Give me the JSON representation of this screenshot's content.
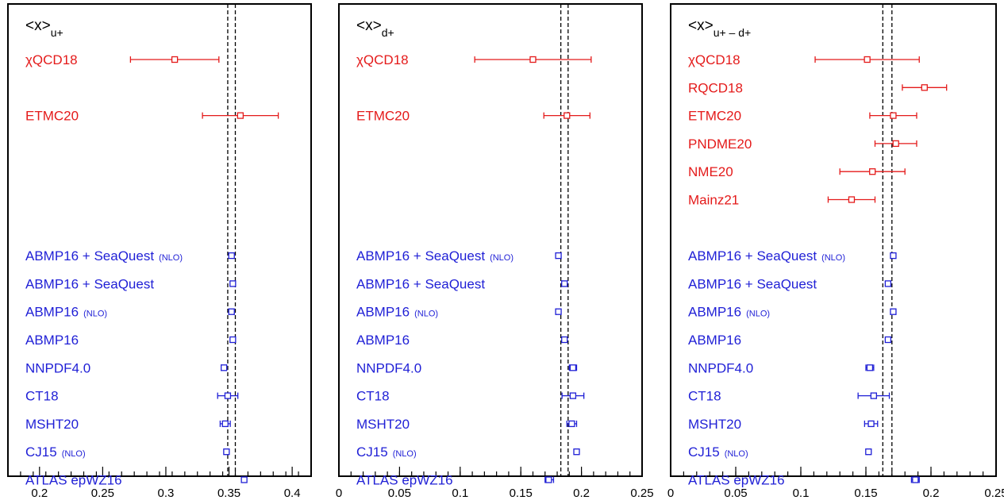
{
  "colors": {
    "lattice": "#e41a1a",
    "pheno": "#1f1fd6",
    "axis": "#000000"
  },
  "chart_data": [
    {
      "type": "scatter",
      "title": "<x>",
      "title_sub": "u+",
      "xlim": [
        0.175,
        0.415
      ],
      "xticks": [
        "0.2",
        "0.25",
        "0.3",
        "0.35",
        "0.4"
      ],
      "band": [
        0.349,
        0.355
      ],
      "points": [
        {
          "label": "χQCD18",
          "group": "lattice",
          "row": 1,
          "x": 0.307,
          "lo": 0.272,
          "hi": 0.342
        },
        {
          "label": "ETMC20",
          "group": "lattice",
          "row": 3,
          "x": 0.359,
          "lo": 0.329,
          "hi": 0.389
        },
        {
          "label": "ABMP16 + SeaQuest",
          "nlo": "(NLO)",
          "group": "pheno",
          "row": 8,
          "x": 0.352,
          "lo": 0.35,
          "hi": 0.354
        },
        {
          "label": "ABMP16 + SeaQuest",
          "group": "pheno",
          "row": 9,
          "x": 0.353,
          "lo": 0.351,
          "hi": 0.355
        },
        {
          "label": "ABMP16",
          "nlo": "(NLO)",
          "group": "pheno",
          "row": 10,
          "x": 0.352,
          "lo": 0.35,
          "hi": 0.354
        },
        {
          "label": "ABMP16",
          "group": "pheno",
          "row": 11,
          "x": 0.353,
          "lo": 0.351,
          "hi": 0.355
        },
        {
          "label": "NNPDF4.0",
          "group": "pheno",
          "row": 12,
          "x": 0.346,
          "lo": 0.344,
          "hi": 0.348
        },
        {
          "label": "CT18",
          "group": "pheno",
          "row": 13,
          "x": 0.349,
          "lo": 0.341,
          "hi": 0.357
        },
        {
          "label": "MSHT20",
          "group": "pheno",
          "row": 14,
          "x": 0.347,
          "lo": 0.343,
          "hi": 0.351
        },
        {
          "label": "CJ15",
          "nlo": "(NLO)",
          "group": "pheno",
          "row": 15,
          "x": 0.348,
          "lo": 0.347,
          "hi": 0.349
        },
        {
          "label": "ATLAS epWZ16",
          "group": "pheno",
          "row": 16,
          "x": 0.362,
          "lo": 0.36,
          "hi": 0.364
        }
      ]
    },
    {
      "type": "scatter",
      "title": "<x>",
      "title_sub": "d+",
      "xlim": [
        0,
        0.25
      ],
      "xticks": [
        "0",
        "0.05",
        "0.1",
        "0.15",
        "0.2",
        "0.25"
      ],
      "band": [
        0.183,
        0.189
      ],
      "points": [
        {
          "label": "χQCD18",
          "group": "lattice",
          "row": 1,
          "x": 0.16,
          "lo": 0.112,
          "hi": 0.208
        },
        {
          "label": "ETMC20",
          "group": "lattice",
          "row": 3,
          "x": 0.188,
          "lo": 0.169,
          "hi": 0.207
        },
        {
          "label": "ABMP16 + SeaQuest",
          "nlo": "(NLO)",
          "group": "pheno",
          "row": 8,
          "x": 0.181,
          "lo": 0.179,
          "hi": 0.183
        },
        {
          "label": "ABMP16 + SeaQuest",
          "group": "pheno",
          "row": 9,
          "x": 0.186,
          "lo": 0.184,
          "hi": 0.188
        },
        {
          "label": "ABMP16",
          "nlo": "(NLO)",
          "group": "pheno",
          "row": 10,
          "x": 0.181,
          "lo": 0.179,
          "hi": 0.183
        },
        {
          "label": "ABMP16",
          "group": "pheno",
          "row": 11,
          "x": 0.186,
          "lo": 0.184,
          "hi": 0.188
        },
        {
          "label": "NNPDF4.0",
          "group": "pheno",
          "row": 12,
          "x": 0.193,
          "lo": 0.19,
          "hi": 0.196
        },
        {
          "label": "CT18",
          "group": "pheno",
          "row": 13,
          "x": 0.193,
          "lo": 0.184,
          "hi": 0.202
        },
        {
          "label": "MSHT20",
          "group": "pheno",
          "row": 14,
          "x": 0.192,
          "lo": 0.188,
          "hi": 0.196
        },
        {
          "label": "CJ15",
          "nlo": "(NLO)",
          "group": "pheno",
          "row": 15,
          "x": 0.196,
          "lo": 0.195,
          "hi": 0.197
        },
        {
          "label": "ATLAS epWZ16",
          "group": "pheno",
          "row": 16,
          "x": 0.173,
          "lo": 0.17,
          "hi": 0.177
        }
      ]
    },
    {
      "type": "scatter",
      "title": "<x>",
      "title_sub": "u+ – d+",
      "xlim": [
        0,
        0.25
      ],
      "xticks": [
        "0",
        "0.05",
        "0.1",
        "0.15",
        "0.2",
        "0.25"
      ],
      "band": [
        0.163,
        0.17
      ],
      "points": [
        {
          "label": "χQCD18",
          "group": "lattice",
          "row": 1,
          "x": 0.151,
          "lo": 0.111,
          "hi": 0.191
        },
        {
          "label": "RQCD18",
          "group": "lattice",
          "row": 2,
          "x": 0.195,
          "lo": 0.178,
          "hi": 0.212
        },
        {
          "label": "ETMC20",
          "group": "lattice",
          "row": 3,
          "x": 0.171,
          "lo": 0.153,
          "hi": 0.189
        },
        {
          "label": "PNDME20",
          "group": "lattice",
          "row": 4,
          "x": 0.173,
          "lo": 0.157,
          "hi": 0.189
        },
        {
          "label": "NME20",
          "group": "lattice",
          "row": 5,
          "x": 0.155,
          "lo": 0.13,
          "hi": 0.18
        },
        {
          "label": "Mainz21",
          "group": "lattice",
          "row": 6,
          "x": 0.139,
          "lo": 0.121,
          "hi": 0.157
        },
        {
          "label": "ABMP16 + SeaQuest",
          "nlo": "(NLO)",
          "group": "pheno",
          "row": 8,
          "x": 0.171,
          "lo": 0.169,
          "hi": 0.173
        },
        {
          "label": "ABMP16 + SeaQuest",
          "group": "pheno",
          "row": 9,
          "x": 0.167,
          "lo": 0.165,
          "hi": 0.169
        },
        {
          "label": "ABMP16",
          "nlo": "(NLO)",
          "group": "pheno",
          "row": 10,
          "x": 0.171,
          "lo": 0.169,
          "hi": 0.173
        },
        {
          "label": "ABMP16",
          "group": "pheno",
          "row": 11,
          "x": 0.167,
          "lo": 0.165,
          "hi": 0.169
        },
        {
          "label": "NNPDF4.0",
          "group": "pheno",
          "row": 12,
          "x": 0.153,
          "lo": 0.15,
          "hi": 0.156
        },
        {
          "label": "CT18",
          "group": "pheno",
          "row": 13,
          "x": 0.156,
          "lo": 0.144,
          "hi": 0.168
        },
        {
          "label": "MSHT20",
          "group": "pheno",
          "row": 14,
          "x": 0.154,
          "lo": 0.149,
          "hi": 0.159
        },
        {
          "label": "CJ15",
          "nlo": "(NLO)",
          "group": "pheno",
          "row": 15,
          "x": 0.152,
          "lo": 0.151,
          "hi": 0.153
        },
        {
          "label": "ATLAS epWZ16",
          "group": "pheno",
          "row": 16,
          "x": 0.188,
          "lo": 0.185,
          "hi": 0.191
        }
      ]
    }
  ]
}
